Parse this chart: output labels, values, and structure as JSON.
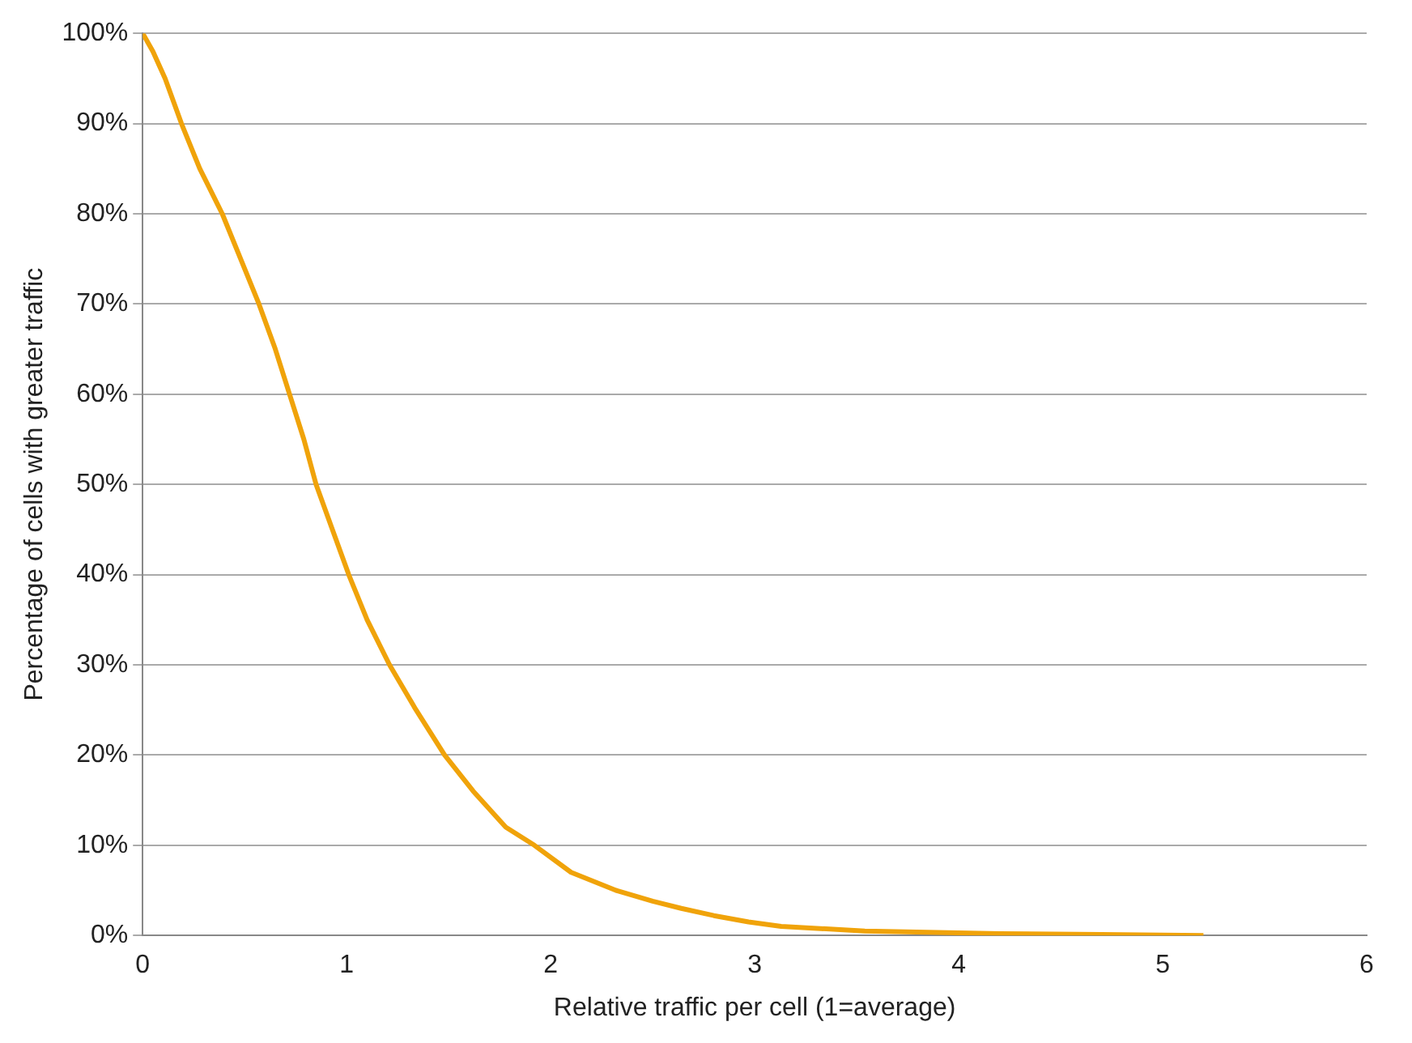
{
  "chart_data": {
    "type": "line",
    "xlabel": "Relative traffic per cell (1=average)",
    "ylabel": "Percentage of cells with greater traffic",
    "series": [
      {
        "color": "#f0a30a",
        "x": [
          0,
          0.05,
          0.11,
          0.19,
          0.28,
          0.39,
          0.48,
          0.57,
          0.65,
          0.72,
          0.79,
          0.85,
          0.93,
          1.01,
          1.1,
          1.21,
          1.34,
          1.48,
          1.62,
          1.78,
          1.92,
          2.1,
          2.32,
          2.5,
          2.64,
          2.8,
          2.97,
          3.13,
          3.54,
          4.2,
          4.7,
          5.2
        ],
        "values": [
          100,
          98,
          95,
          90,
          85,
          80,
          75,
          70,
          65,
          60,
          55,
          50,
          45,
          40,
          35,
          30,
          25,
          20,
          16,
          12,
          10,
          7,
          5,
          3.8,
          3,
          2.2,
          1.5,
          1,
          0.5,
          0.2,
          0.1,
          0
        ]
      }
    ],
    "xlim": [
      0,
      6
    ],
    "xticks": [
      0,
      1,
      2,
      3,
      4,
      5,
      6
    ],
    "ylim": [
      0,
      100
    ],
    "yticks": [
      {
        "value": 0,
        "label": "0%"
      },
      {
        "value": 10,
        "label": "10%"
      },
      {
        "value": 20,
        "label": "20%"
      },
      {
        "value": 30,
        "label": "30%"
      },
      {
        "value": 40,
        "label": "40%"
      },
      {
        "value": 50,
        "label": "50%"
      },
      {
        "value": 60,
        "label": "60%"
      },
      {
        "value": 70,
        "label": "70%"
      },
      {
        "value": 80,
        "label": "80%"
      },
      {
        "value": 90,
        "label": "90%"
      },
      {
        "value": 100,
        "label": "100%"
      }
    ],
    "grid": "y",
    "marker": "none",
    "line_style": "solid"
  }
}
